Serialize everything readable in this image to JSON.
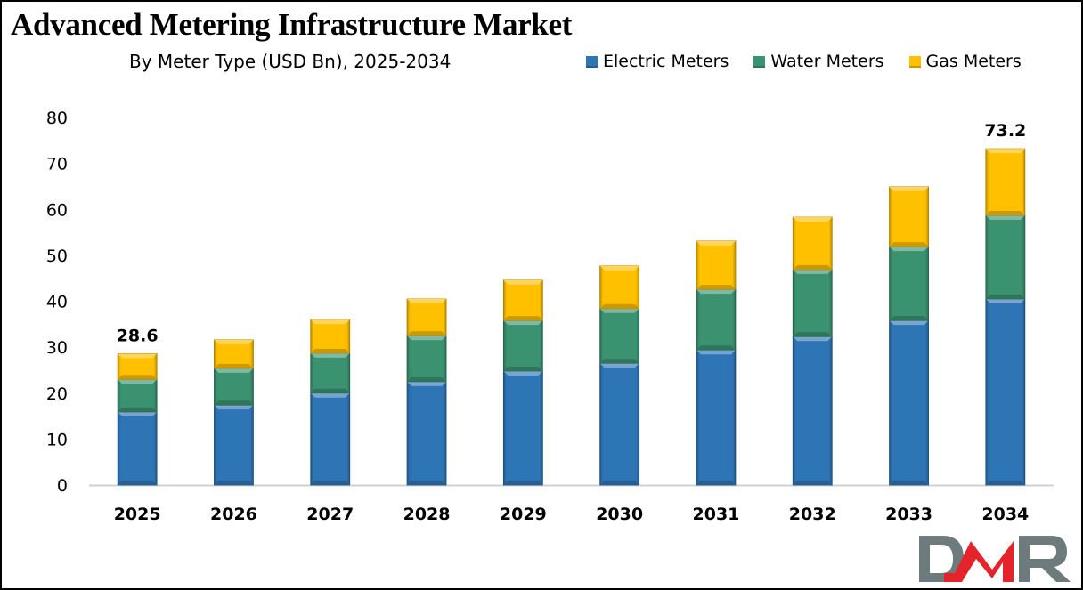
{
  "chart_data": {
    "type": "bar",
    "stacked": true,
    "title": "Advanced Metering Infrastructure Market",
    "subtitle": "By Meter Type (USD Bn), 2025-2034",
    "xlabel": "",
    "ylabel": "",
    "ylim": [
      0,
      80
    ],
    "yticks": [
      0,
      10,
      20,
      30,
      40,
      50,
      60,
      70,
      80
    ],
    "grid": false,
    "legend_position": "top-right",
    "categories": [
      "2025",
      "2026",
      "2027",
      "2028",
      "2029",
      "2030",
      "2031",
      "2032",
      "2033",
      "2034"
    ],
    "series": [
      {
        "name": "Electric Meters",
        "color": "#2E75B6",
        "values": [
          15.9,
          17.4,
          20.0,
          22.5,
          24.8,
          26.5,
          29.4,
          32.3,
          35.8,
          40.5
        ]
      },
      {
        "name": "Water Meters",
        "color": "#3A9271",
        "values": [
          7.1,
          8.0,
          8.7,
          10.0,
          11.0,
          11.9,
          13.2,
          14.6,
          16.1,
          18.2
        ]
      },
      {
        "name": "Gas Meters",
        "color": "#FFC000",
        "values": [
          5.6,
          6.2,
          7.3,
          8.0,
          8.8,
          9.3,
          10.5,
          11.4,
          13.0,
          14.5
        ]
      }
    ],
    "totals": [
      28.6,
      31.6,
      36.0,
      40.5,
      44.6,
      47.7,
      53.1,
      58.3,
      64.9,
      73.2
    ],
    "annotations": [
      {
        "category": "2025",
        "text": "28.6"
      },
      {
        "category": "2034",
        "text": "73.2"
      }
    ]
  },
  "branding": {
    "logo_text": "DMR",
    "logo_colors": {
      "primary": "#E5232A",
      "secondary": "#6E7B7C"
    }
  }
}
